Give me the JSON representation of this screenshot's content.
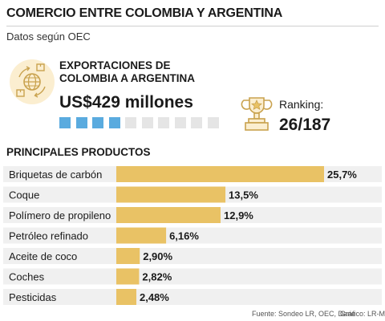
{
  "header": {
    "title": "COMERCIO ENTRE COLOMBIA Y ARGENTINA",
    "subtitle": "Datos según OEC"
  },
  "exports": {
    "label": "EXPORTACIONES DE COLOMBIA A ARGENTINA",
    "value": "US$429 millones",
    "icon": "globe-trade-icon",
    "squares": {
      "filled": 4,
      "total": 10,
      "filled_color": "#5aabdf",
      "empty_color": "#e5e5e5"
    }
  },
  "ranking": {
    "label": "Ranking:",
    "value": "26/187",
    "icon": "trophy-icon"
  },
  "products_title": "PRINCIPALES PRODUCTOS",
  "chart_data": {
    "type": "bar",
    "orientation": "horizontal",
    "categories": [
      "Briquetas de carbón",
      "Coque",
      "Polímero de propileno",
      "Petróleo refinado",
      "Aceite de coco",
      "Coches",
      "Pesticidas"
    ],
    "values": [
      25.7,
      13.5,
      12.9,
      6.16,
      2.9,
      2.82,
      2.48
    ],
    "value_labels": [
      "25,7%",
      "13,5%",
      "12,9%",
      "6,16%",
      "2,90%",
      "2,82%",
      "2,48%"
    ],
    "bar_color": "#e9c265",
    "row_color": "#f0f0f0"
  },
  "footer": {
    "source": "Fuente: Sondeo LR, OEC, Dane",
    "credit": "Gráfico: LR-MN"
  },
  "colors": {
    "accent": "#e9c265",
    "accent_light": "#fbeed0",
    "square_blue": "#5aabdf"
  }
}
